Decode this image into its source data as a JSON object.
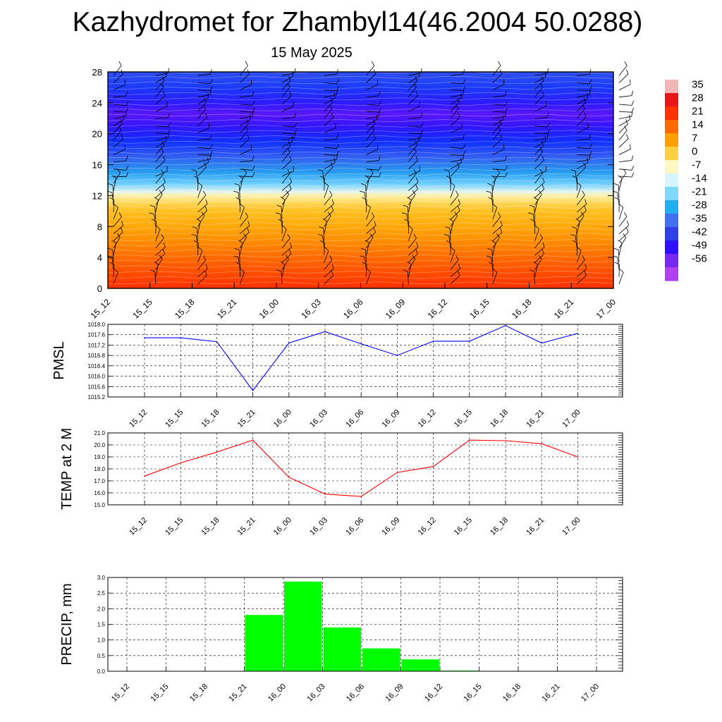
{
  "header": {
    "title": "Kazhydromet for Zhambyl14(46.2004 50.0288)",
    "subtitle": "15 May 2025"
  },
  "chart_data": [
    {
      "type": "heatmap",
      "title": "",
      "xlabel": "",
      "ylabel": "",
      "x_ticks": [
        "15_12",
        "15_15",
        "15_18",
        "15_21",
        "16_00",
        "16_03",
        "16_06",
        "16_09",
        "16_12",
        "16_15",
        "16_18",
        "16_21",
        "17_00"
      ],
      "y_ticks": [
        0,
        4,
        8,
        12,
        16,
        20,
        24,
        28
      ],
      "ylim": [
        0,
        28
      ],
      "colorbar": {
        "labels": [
          "35",
          "28",
          "21",
          "14",
          "7",
          "0",
          "-7",
          "-14",
          "-21",
          "-28",
          "-35",
          "-42",
          "-49",
          "-56"
        ],
        "colors": [
          "#f4b6b6",
          "#e81818",
          "#ff3000",
          "#ff6a00",
          "#ffa000",
          "#ffd040",
          "#fff8c0",
          "#d8f4ff",
          "#80d8ff",
          "#20b0f0",
          "#4070f0",
          "#3040e8",
          "#3010ff",
          "#7828f0",
          "#b040f0"
        ]
      },
      "profile": [
        {
          "level": 0,
          "temp": 22
        },
        {
          "level": 2,
          "temp": 19
        },
        {
          "level": 4,
          "temp": 16
        },
        {
          "level": 6,
          "temp": 12
        },
        {
          "level": 8,
          "temp": 8
        },
        {
          "level": 10,
          "temp": 4
        },
        {
          "level": 11,
          "temp": 0
        },
        {
          "level": 12,
          "temp": -6
        },
        {
          "level": 12.5,
          "temp": -12
        },
        {
          "level": 13.5,
          "temp": -22
        },
        {
          "level": 15,
          "temp": -32
        },
        {
          "level": 17,
          "temp": -42
        },
        {
          "level": 19,
          "temp": -50
        },
        {
          "level": 21,
          "temp": -55
        },
        {
          "level": 22.5,
          "temp": -58
        },
        {
          "level": 24,
          "temp": -54
        },
        {
          "level": 26,
          "temp": -48
        },
        {
          "level": 28,
          "temp": -44
        }
      ],
      "wind_barbs": "present"
    },
    {
      "type": "line",
      "title": "",
      "ylabel": "PMSL",
      "x": [
        "15_12",
        "15_15",
        "15_18",
        "15_21",
        "16_00",
        "16_03",
        "16_06",
        "16_09",
        "16_12",
        "16_15",
        "16_18",
        "16_21",
        "17_00"
      ],
      "y_ticks": [
        "1015.2",
        "1015.6",
        "1016.0",
        "1016.4",
        "1016.8",
        "1017.2",
        "1017.6",
        "1018.0"
      ],
      "ylim": [
        1015.2,
        1018.0
      ],
      "series": [
        {
          "color": "#0000ff",
          "values": [
            1017.48,
            1017.48,
            1017.33,
            1015.45,
            1017.28,
            1017.72,
            1017.25,
            1016.8,
            1017.35,
            1017.35,
            1017.95,
            1017.28,
            1017.65
          ]
        }
      ],
      "grid": "dashed"
    },
    {
      "type": "line",
      "title": "",
      "ylabel": "TEMP at 2 M",
      "x": [
        "15_12",
        "15_15",
        "15_18",
        "15_21",
        "16_00",
        "16_03",
        "16_06",
        "16_09",
        "16_12",
        "16_15",
        "16_18",
        "16_21",
        "17_00"
      ],
      "y_ticks": [
        "15.0",
        "16.0",
        "17.0",
        "18.0",
        "19.0",
        "20.0",
        "21.0"
      ],
      "ylim": [
        15.0,
        21.0
      ],
      "series": [
        {
          "color": "#ff0000",
          "values": [
            17.4,
            18.5,
            19.4,
            20.4,
            17.3,
            15.9,
            15.7,
            17.7,
            18.2,
            20.4,
            20.35,
            20.1,
            19.0
          ]
        }
      ],
      "grid": "dashed"
    },
    {
      "type": "bar",
      "title": "",
      "ylabel": "PRECIP, mm",
      "categories": [
        "15_12",
        "15_15",
        "15_18",
        "15_21",
        "16_00",
        "16_03",
        "16_06",
        "16_09",
        "16_12",
        "16_15",
        "16_18",
        "16_21",
        "17_00"
      ],
      "y_ticks": [
        "0.0",
        "0.5",
        "1.0",
        "1.5",
        "2.0",
        "2.5",
        "3.0"
      ],
      "ylim": [
        0,
        3.0
      ],
      "bar_color": "#00ff00",
      "bars": [
        {
          "from": "15_21",
          "to": "16_00",
          "value": 1.8
        },
        {
          "from": "16_00",
          "to": "16_03",
          "value": 2.87
        },
        {
          "from": "16_03",
          "to": "16_06",
          "value": 1.4
        },
        {
          "from": "16_06",
          "to": "16_09",
          "value": 0.73
        },
        {
          "from": "16_09",
          "to": "16_12",
          "value": 0.38
        },
        {
          "from": "16_12",
          "to": "16_15",
          "value": 0.02
        }
      ],
      "grid": "dashed"
    }
  ]
}
